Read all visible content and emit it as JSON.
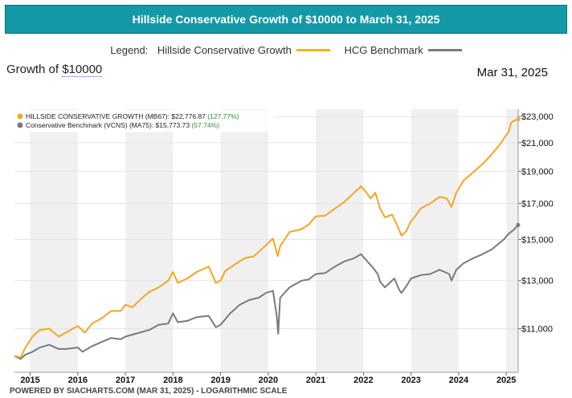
{
  "header": {
    "title": "Hillside Conservative Growth of $10000 to March 31, 2025"
  },
  "legend": {
    "label": "Legend:",
    "items": [
      {
        "name": "Hillside Conservative Growth",
        "color": "#f5b400"
      },
      {
        "name": "HCG Benchmark",
        "color": "#777b80"
      }
    ]
  },
  "growth_label": {
    "prefix": "Growth of",
    "amount": "$10000"
  },
  "as_of_date": "Mar 31, 2025",
  "footer": "POWERED BY SIACHARTS.COM (MAR 31, 2025) - LOGARITHMIC SCALE",
  "chart_data": {
    "type": "line",
    "scale": "log",
    "ylim": [
      9450,
      23600
    ],
    "xlim": [
      2014.67,
      2025.25
    ],
    "y_ticks": [
      "$23,000",
      "$21,000",
      "$19,000",
      "$17,000",
      "$15,000",
      "$13,000",
      "$11,000"
    ],
    "y_tick_values": [
      23000,
      21000,
      19000,
      17000,
      15000,
      13000,
      11000
    ],
    "x_ticks": [
      "2015",
      "2016",
      "2017",
      "2018",
      "2019",
      "2020",
      "2021",
      "2022",
      "2023",
      "2024",
      "2025"
    ],
    "x_tick_values": [
      2015,
      2016,
      2017,
      2018,
      2019,
      2020,
      2021,
      2022,
      2023,
      2024,
      2025
    ],
    "grid": true,
    "series": [
      {
        "name": "HILLSIDE CONSERVATIVE GROWTH (MB67)",
        "value_label": "$22,776.87",
        "change_label": "(127.77%)",
        "color": "#f5a623",
        "points": [
          [
            2014.67,
            10000
          ],
          [
            2014.8,
            9950
          ],
          [
            2014.9,
            10300
          ],
          [
            2015.05,
            10700
          ],
          [
            2015.2,
            10950
          ],
          [
            2015.4,
            11000
          ],
          [
            2015.6,
            10700
          ],
          [
            2015.75,
            10850
          ],
          [
            2016.0,
            11100
          ],
          [
            2016.15,
            10850
          ],
          [
            2016.3,
            11200
          ],
          [
            2016.5,
            11400
          ],
          [
            2016.7,
            11700
          ],
          [
            2016.9,
            11700
          ],
          [
            2017.0,
            11950
          ],
          [
            2017.15,
            11850
          ],
          [
            2017.3,
            12150
          ],
          [
            2017.5,
            12500
          ],
          [
            2017.7,
            12700
          ],
          [
            2017.9,
            13000
          ],
          [
            2018.0,
            13400
          ],
          [
            2018.1,
            12900
          ],
          [
            2018.3,
            13100
          ],
          [
            2018.5,
            13400
          ],
          [
            2018.75,
            13650
          ],
          [
            2018.9,
            12900
          ],
          [
            2019.0,
            13000
          ],
          [
            2019.1,
            13450
          ],
          [
            2019.3,
            13750
          ],
          [
            2019.5,
            14050
          ],
          [
            2019.7,
            14150
          ],
          [
            2019.95,
            14700
          ],
          [
            2020.1,
            15050
          ],
          [
            2020.2,
            14150
          ],
          [
            2020.25,
            14650
          ],
          [
            2020.45,
            15400
          ],
          [
            2020.7,
            15550
          ],
          [
            2020.85,
            15800
          ],
          [
            2021.0,
            16250
          ],
          [
            2021.2,
            16300
          ],
          [
            2021.4,
            16700
          ],
          [
            2021.6,
            17100
          ],
          [
            2021.75,
            17500
          ],
          [
            2021.95,
            18050
          ],
          [
            2022.05,
            17700
          ],
          [
            2022.15,
            17300
          ],
          [
            2022.25,
            17650
          ],
          [
            2022.35,
            16700
          ],
          [
            2022.45,
            16200
          ],
          [
            2022.6,
            16350
          ],
          [
            2022.7,
            15800
          ],
          [
            2022.8,
            15200
          ],
          [
            2022.9,
            15450
          ],
          [
            2023.0,
            16000
          ],
          [
            2023.1,
            16300
          ],
          [
            2023.2,
            16700
          ],
          [
            2023.4,
            17000
          ],
          [
            2023.6,
            17400
          ],
          [
            2023.75,
            17300
          ],
          [
            2023.85,
            16800
          ],
          [
            2023.95,
            17650
          ],
          [
            2024.1,
            18400
          ],
          [
            2024.25,
            18800
          ],
          [
            2024.4,
            19200
          ],
          [
            2024.55,
            19650
          ],
          [
            2024.7,
            20200
          ],
          [
            2024.85,
            20800
          ],
          [
            2024.95,
            21300
          ],
          [
            2025.05,
            21800
          ],
          [
            2025.1,
            22500
          ],
          [
            2025.15,
            22650
          ],
          [
            2025.25,
            22777
          ]
        ]
      },
      {
        "name": "Conservative Benchmark (VCNS) (MA75)",
        "value_label": "$15,773.73",
        "change_label": "(57.74%)",
        "color": "#777b80",
        "points": [
          [
            2014.67,
            10000
          ],
          [
            2014.8,
            9900
          ],
          [
            2014.9,
            10050
          ],
          [
            2015.05,
            10150
          ],
          [
            2015.2,
            10300
          ],
          [
            2015.4,
            10400
          ],
          [
            2015.6,
            10250
          ],
          [
            2015.75,
            10250
          ],
          [
            2016.0,
            10300
          ],
          [
            2016.1,
            10150
          ],
          [
            2016.3,
            10350
          ],
          [
            2016.5,
            10500
          ],
          [
            2016.7,
            10650
          ],
          [
            2016.9,
            10600
          ],
          [
            2017.0,
            10700
          ],
          [
            2017.3,
            10850
          ],
          [
            2017.5,
            10950
          ],
          [
            2017.7,
            11150
          ],
          [
            2017.9,
            11200
          ],
          [
            2018.0,
            11600
          ],
          [
            2018.1,
            11250
          ],
          [
            2018.3,
            11300
          ],
          [
            2018.5,
            11450
          ],
          [
            2018.75,
            11500
          ],
          [
            2018.9,
            11050
          ],
          [
            2019.0,
            11150
          ],
          [
            2019.2,
            11600
          ],
          [
            2019.4,
            11950
          ],
          [
            2019.6,
            12150
          ],
          [
            2019.8,
            12250
          ],
          [
            2019.95,
            12450
          ],
          [
            2020.1,
            12550
          ],
          [
            2020.18,
            11500
          ],
          [
            2020.21,
            10800
          ],
          [
            2020.25,
            12250
          ],
          [
            2020.45,
            12700
          ],
          [
            2020.7,
            13000
          ],
          [
            2020.85,
            13050
          ],
          [
            2021.0,
            13300
          ],
          [
            2021.2,
            13350
          ],
          [
            2021.4,
            13650
          ],
          [
            2021.6,
            13900
          ],
          [
            2021.8,
            14050
          ],
          [
            2021.95,
            14250
          ],
          [
            2022.1,
            13850
          ],
          [
            2022.2,
            13600
          ],
          [
            2022.3,
            13300
          ],
          [
            2022.35,
            12950
          ],
          [
            2022.45,
            12700
          ],
          [
            2022.55,
            12900
          ],
          [
            2022.65,
            13100
          ],
          [
            2022.75,
            12600
          ],
          [
            2022.8,
            12450
          ],
          [
            2022.9,
            12750
          ],
          [
            2023.0,
            13100
          ],
          [
            2023.2,
            13250
          ],
          [
            2023.4,
            13300
          ],
          [
            2023.6,
            13500
          ],
          [
            2023.8,
            13300
          ],
          [
            2023.85,
            13000
          ],
          [
            2023.95,
            13500
          ],
          [
            2024.1,
            13800
          ],
          [
            2024.3,
            14050
          ],
          [
            2024.5,
            14250
          ],
          [
            2024.7,
            14500
          ],
          [
            2024.85,
            14800
          ],
          [
            2024.95,
            15000
          ],
          [
            2025.05,
            15300
          ],
          [
            2025.15,
            15500
          ],
          [
            2025.25,
            15774
          ]
        ]
      }
    ]
  }
}
